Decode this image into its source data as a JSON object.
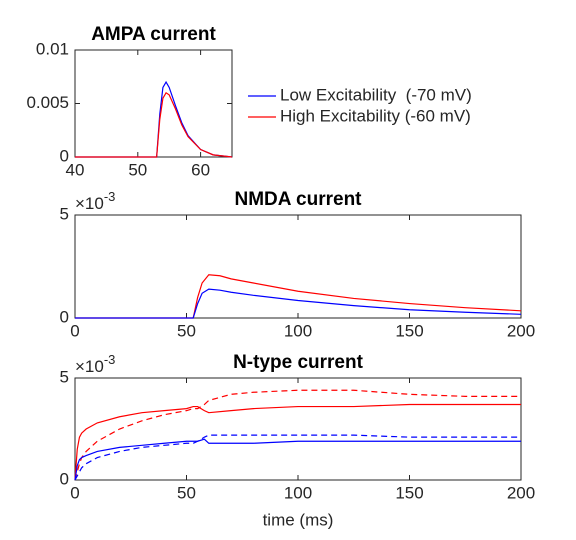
{
  "chart_data": [
    {
      "type": "line",
      "title": "AMPA current",
      "x": [
        40,
        52,
        53,
        53.5,
        54,
        54.5,
        55,
        56,
        57,
        58,
        60,
        62,
        65
      ],
      "series": [
        {
          "name": "Low Excitability  (-70 mV)",
          "color": "#0000ff",
          "dash": "solid",
          "values": [
            0,
            0,
            0,
            0.004,
            0.0065,
            0.007,
            0.0065,
            0.0048,
            0.0032,
            0.002,
            0.0007,
            0.0002,
            0
          ]
        },
        {
          "name": "High Excitability (-60 mV)",
          "color": "#ff0000",
          "dash": "solid",
          "values": [
            0,
            0,
            0,
            0.0035,
            0.0055,
            0.006,
            0.0058,
            0.0045,
            0.003,
            0.0019,
            0.0007,
            0.0002,
            0
          ]
        }
      ],
      "xlim": [
        40,
        65
      ],
      "xticks": [
        40,
        50,
        60
      ],
      "ylim": [
        0,
        0.01
      ],
      "yticks": [
        0,
        0.005,
        0.01
      ],
      "legend": "east-outside",
      "box": true
    },
    {
      "type": "line",
      "title": "NMDA current",
      "x": [
        0,
        50,
        53,
        55,
        57,
        60,
        65,
        70,
        80,
        100,
        125,
        150,
        175,
        200
      ],
      "series": [
        {
          "color": "#ff0000",
          "dash": "solid",
          "values": [
            0,
            0,
            0,
            0.001,
            0.0017,
            0.0021,
            0.00205,
            0.0019,
            0.0017,
            0.0013,
            0.00095,
            0.0007,
            0.0005,
            0.00035
          ]
        },
        {
          "color": "#0000ff",
          "dash": "solid",
          "values": [
            0,
            0,
            0,
            0.0007,
            0.0012,
            0.0014,
            0.00135,
            0.00125,
            0.0011,
            0.00085,
            0.0006,
            0.0004,
            0.00028,
            0.00018
          ]
        }
      ],
      "xlim": [
        0,
        200
      ],
      "xticks": [
        0,
        50,
        100,
        150,
        200
      ],
      "ylim": [
        0,
        0.005
      ],
      "yticks": [
        0,
        {
          "value": 0.005,
          "label": "5"
        }
      ],
      "y_multiplier": {
        "base": "×10",
        "exponent": "-3"
      },
      "box": true
    },
    {
      "type": "line",
      "title": "N-type current",
      "xlabel": "time (ms)",
      "x": [
        0,
        1,
        2,
        3,
        5,
        10,
        20,
        30,
        40,
        50,
        53,
        55,
        58,
        60,
        70,
        80,
        100,
        125,
        150,
        175,
        200
      ],
      "series": [
        {
          "color": "#ff0000",
          "dash": "solid",
          "values": [
            0,
            0.0015,
            0.0021,
            0.0023,
            0.0025,
            0.0028,
            0.0031,
            0.0033,
            0.0034,
            0.0035,
            0.0036,
            0.0036,
            0.0034,
            0.0033,
            0.0034,
            0.0035,
            0.0036,
            0.0036,
            0.0037,
            0.0037,
            0.0037
          ]
        },
        {
          "color": "#ff0000",
          "dash": "dashed",
          "values": [
            0,
            0.0004,
            0.0008,
            0.0011,
            0.0014,
            0.0019,
            0.0025,
            0.0029,
            0.0032,
            0.0034,
            0.0035,
            0.0035,
            0.0037,
            0.0039,
            0.0042,
            0.0043,
            0.0044,
            0.0044,
            0.0042,
            0.0041,
            0.0041
          ]
        },
        {
          "color": "#0000ff",
          "dash": "solid",
          "values": [
            0,
            0.0007,
            0.001,
            0.0011,
            0.0012,
            0.0014,
            0.0016,
            0.0017,
            0.0018,
            0.0019,
            0.0019,
            0.0019,
            0.002,
            0.0018,
            0.0018,
            0.0018,
            0.0019,
            0.0019,
            0.0019,
            0.0019,
            0.0019
          ]
        },
        {
          "color": "#0000ff",
          "dash": "dashed",
          "values": [
            0,
            0.0002,
            0.0004,
            0.0006,
            0.0008,
            0.0011,
            0.0014,
            0.0016,
            0.0017,
            0.0018,
            0.0018,
            0.0019,
            0.0021,
            0.0022,
            0.0022,
            0.0022,
            0.0022,
            0.0022,
            0.0021,
            0.0021,
            0.0021
          ]
        }
      ],
      "xlim": [
        0,
        200
      ],
      "xticks": [
        0,
        50,
        100,
        150,
        200
      ],
      "ylim": [
        0,
        0.005
      ],
      "yticks": [
        0,
        {
          "value": 0.005,
          "label": "5"
        }
      ],
      "y_multiplier": {
        "base": "×10",
        "exponent": "-3"
      },
      "box": true
    }
  ]
}
